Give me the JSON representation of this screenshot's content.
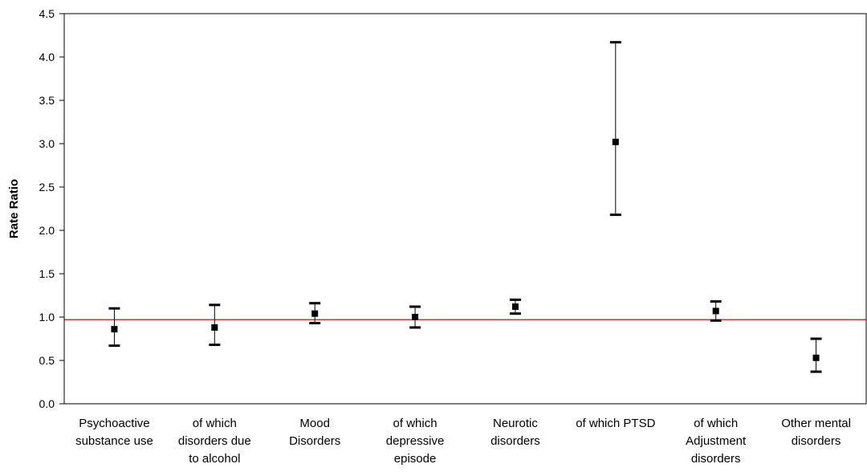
{
  "chart_data": {
    "type": "scatter",
    "title": "",
    "xlabel": "",
    "ylabel": "Rate Ratio",
    "ylim": [
      0,
      4.5
    ],
    "yticks": [
      "0.0",
      "0.5",
      "1.0",
      "1.5",
      "2.0",
      "2.5",
      "3.0",
      "3.5",
      "4.0",
      "4.5"
    ],
    "grid": false,
    "legend": "none",
    "reference_line": {
      "y": 0.97,
      "color": "#e0342a"
    },
    "marker_color": "#000000",
    "categories": [
      [
        "Psychoactive",
        "substance use"
      ],
      [
        "of which",
        "disorders due",
        "to alcohol"
      ],
      [
        "Mood",
        "Disorders"
      ],
      [
        "of which",
        "depressive",
        "episode"
      ],
      [
        "Neurotic",
        "disorders"
      ],
      [
        "of which PTSD"
      ],
      [
        "of which",
        "Adjustment",
        "disorders"
      ],
      [
        "Other mental",
        "disorders"
      ]
    ],
    "points": [
      {
        "estimate": 0.86,
        "lower": 0.67,
        "upper": 1.1
      },
      {
        "estimate": 0.88,
        "lower": 0.68,
        "upper": 1.14
      },
      {
        "estimate": 1.04,
        "lower": 0.93,
        "upper": 1.16
      },
      {
        "estimate": 1.0,
        "lower": 0.88,
        "upper": 1.12
      },
      {
        "estimate": 1.12,
        "lower": 1.04,
        "upper": 1.2
      },
      {
        "estimate": 3.02,
        "lower": 2.18,
        "upper": 4.17
      },
      {
        "estimate": 1.07,
        "lower": 0.96,
        "upper": 1.18
      },
      {
        "estimate": 0.53,
        "lower": 0.37,
        "upper": 0.75
      }
    ]
  }
}
